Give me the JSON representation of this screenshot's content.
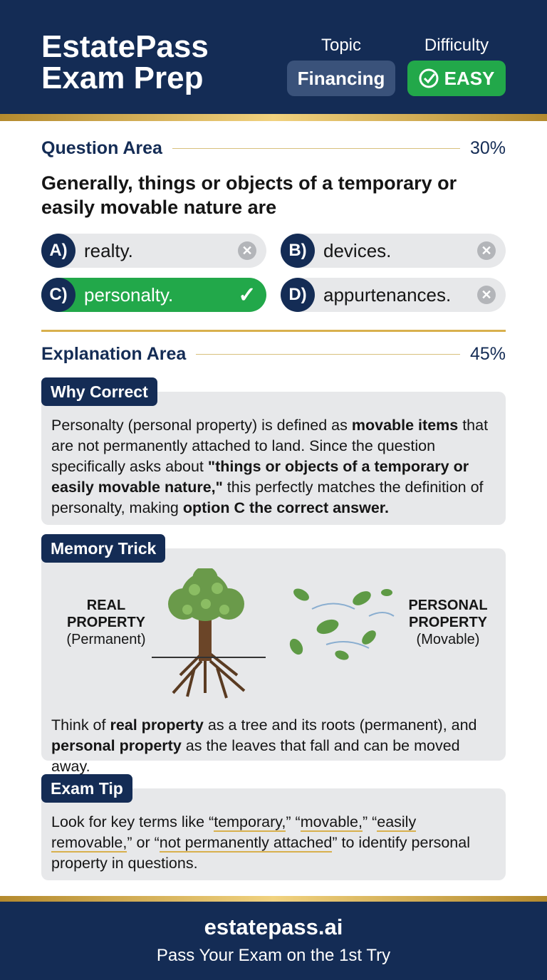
{
  "header": {
    "title_line1": "EstatePass",
    "title_line2": "Exam Prep",
    "topic_label": "Topic",
    "topic_value": "Financing",
    "difficulty_label": "Difficulty",
    "difficulty_value": "EASY"
  },
  "question_area": {
    "heading": "Question Area",
    "percent": "30%",
    "question": "Generally, things or objects of a temporary or easily movable nature are",
    "options": [
      {
        "letter": "A)",
        "text": "realty.",
        "status": "incorrect"
      },
      {
        "letter": "B)",
        "text": "devices.",
        "status": "incorrect"
      },
      {
        "letter": "C)",
        "text": "personalty.",
        "status": "correct"
      },
      {
        "letter": "D)",
        "text": "appurtenances.",
        "status": "incorrect"
      }
    ]
  },
  "explanation_area": {
    "heading": "Explanation Area",
    "percent": "45%",
    "why_correct": {
      "title": "Why Correct",
      "p1": "Personalty (personal property) is defined as ",
      "b1": "movable items",
      "p2": " that are not permanently attached to land. Since the question specifically asks about ",
      "b2": "\"things or objects of a temporary or easily movable nature,\"",
      "p3": " this perfectly matches the definition of personalty, making ",
      "b3": "option C the correct answer."
    },
    "memory_trick": {
      "title": "Memory Trick",
      "left_title": "REAL PROPERTY",
      "left_sub": "(Permanent)",
      "right_title": "PERSONAL PROPERTY",
      "right_sub": "(Movable)",
      "p1": "Think of ",
      "b1": "real property",
      "p2": " as a tree and its roots (permanent), and ",
      "b2": "personal property",
      "p3": " as the leaves that fall and can be moved away."
    },
    "exam_tip": {
      "title": "Exam Tip",
      "p1": "Look for key terms like “",
      "u1": "temporary,",
      "p2": "” “",
      "u2": "movable,",
      "p3": "” “",
      "u3": "easily removable,",
      "p4": "” or “",
      "u4": "not permanently attached",
      "p5": "” to identify personal property in questions."
    }
  },
  "footer": {
    "site": "estatepass.ai",
    "tagline": "Pass Your Exam on the 1st Try"
  },
  "colors": {
    "navy": "#142c55",
    "green": "#22a84a",
    "gold": "#d8b04d"
  }
}
